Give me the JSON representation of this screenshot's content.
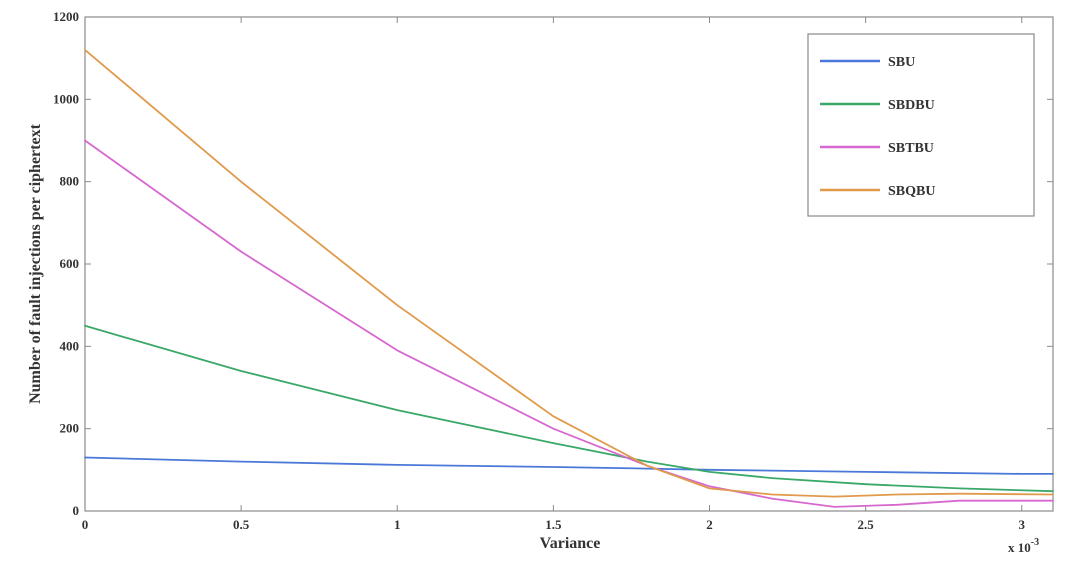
{
  "chart_data": {
    "type": "line",
    "xlabel": "Variance",
    "ylabel": "Number of fault injections per ciphertext",
    "x_multiplier": "x 10",
    "x_multiplier_exp": "-3",
    "xlim": [
      0,
      3.1
    ],
    "ylim": [
      0,
      1200
    ],
    "x_ticks": [
      0,
      0.5,
      1,
      1.5,
      2,
      2.5,
      3
    ],
    "x_tick_labels": [
      "0",
      "0.5",
      "1",
      "1.5",
      "2",
      "2.5",
      "3"
    ],
    "y_ticks": [
      0,
      200,
      400,
      600,
      800,
      1000,
      1200
    ],
    "y_tick_labels": [
      "0",
      "200",
      "400",
      "600",
      "800",
      "1000",
      "1200"
    ],
    "grid": false,
    "legend": {
      "placement": "top-right"
    },
    "series": [
      {
        "name": "SBU",
        "color": "#4a78d8",
        "points": [
          [
            0,
            130
          ],
          [
            0.5,
            120
          ],
          [
            1,
            112
          ],
          [
            1.5,
            107
          ],
          [
            1.8,
            103
          ],
          [
            2,
            100
          ],
          [
            2.5,
            95
          ],
          [
            3,
            90
          ],
          [
            3.1,
            90
          ]
        ]
      },
      {
        "name": "SBDBU",
        "color": "#3aa868",
        "points": [
          [
            0,
            450
          ],
          [
            0.5,
            340
          ],
          [
            1,
            245
          ],
          [
            1.5,
            165
          ],
          [
            1.8,
            120
          ],
          [
            2,
            95
          ],
          [
            2.2,
            80
          ],
          [
            2.5,
            65
          ],
          [
            2.8,
            55
          ],
          [
            3.1,
            48
          ]
        ]
      },
      {
        "name": "SBTBU",
        "color": "#d668d0",
        "points": [
          [
            0,
            900
          ],
          [
            0.5,
            630
          ],
          [
            1,
            390
          ],
          [
            1.5,
            200
          ],
          [
            1.8,
            110
          ],
          [
            2,
            60
          ],
          [
            2.2,
            30
          ],
          [
            2.4,
            10
          ],
          [
            2.6,
            15
          ],
          [
            2.8,
            25
          ],
          [
            3.1,
            25
          ]
        ]
      },
      {
        "name": "SBQBU",
        "color": "#e09a4a",
        "points": [
          [
            0,
            1120
          ],
          [
            0.5,
            800
          ],
          [
            1,
            500
          ],
          [
            1.5,
            230
          ],
          [
            1.8,
            110
          ],
          [
            2,
            55
          ],
          [
            2.2,
            40
          ],
          [
            2.4,
            35
          ],
          [
            2.6,
            40
          ],
          [
            2.8,
            42
          ],
          [
            3.1,
            40
          ]
        ]
      }
    ]
  }
}
